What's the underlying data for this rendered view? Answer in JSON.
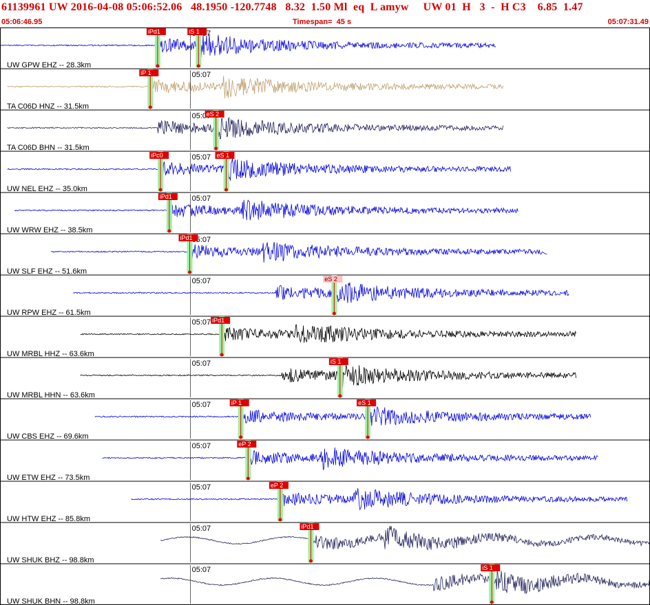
{
  "header": {
    "title": "61139961 UW 2016-04-08 05:06:52.06   48.1950 -120.7748   8.32  1.50 Ml  eq  L amyw     UW 01  H   3  -  H C3    6.85  1.47",
    "start_time": "05:06:46.95",
    "timespan": "Timespan=  45 s",
    "end_time": "05:07:31.49"
  },
  "colors": {
    "blue": "#0000e0",
    "tan": "#c0a070",
    "navy": "#20205a",
    "black": "#000000",
    "pick_red": "#e00000",
    "pick_pink": "#ffc0c0",
    "pick_window_green": "#a0f0a0"
  },
  "chart_data": {
    "type": "seismogram",
    "x_unit": "seconds after 05:06:46.95",
    "xlim": [
      0,
      44.54
    ],
    "minute_marker_label": "05:07",
    "minute_marker_t": 13.05,
    "traces": [
      {
        "label": "UW GPW EHZ -- 28.3km",
        "color": "blue",
        "start": 0.0,
        "end": 34.0,
        "picks": [
          {
            "label": "iPd1",
            "t": 10.8,
            "style": "red"
          },
          {
            "label": "iS 1",
            "t": 13.6,
            "style": "red"
          }
        ]
      },
      {
        "label": "TA C06D HNZ -- 31.5km",
        "color": "tan",
        "start": 0.5,
        "end": 34.5,
        "picks": [
          {
            "label": "iP 1",
            "t": 10.3,
            "style": "red"
          }
        ]
      },
      {
        "label": "TA C06D BHN -- 31.5km",
        "color": "navy",
        "start": 0.5,
        "end": 34.5,
        "picks": [
          {
            "label": "eS 2",
            "t": 14.8,
            "style": "red"
          }
        ]
      },
      {
        "label": "UW NEL EHZ -- 35.0km",
        "color": "blue",
        "start": 0.5,
        "end": 35.0,
        "picks": [
          {
            "label": "iPc0",
            "t": 11.0,
            "style": "red"
          },
          {
            "label": "eS 1",
            "t": 15.5,
            "style": "red"
          }
        ]
      },
      {
        "label": "UW WRW EHZ -- 38.5km",
        "color": "blue",
        "start": 1.0,
        "end": 35.5,
        "picks": [
          {
            "label": "iPd1",
            "t": 11.6,
            "style": "red"
          }
        ]
      },
      {
        "label": "UW SLF EHZ -- 51.6km",
        "color": "blue",
        "start": 3.5,
        "end": 37.5,
        "picks": [
          {
            "label": "iPd1",
            "t": 13.0,
            "style": "red"
          }
        ]
      },
      {
        "label": "UW RPW EHZ -- 61.5km",
        "color": "blue",
        "start": 5.0,
        "end": 39.0,
        "picks": [
          {
            "label": "eS 2",
            "t": 22.9,
            "style": "pink"
          }
        ]
      },
      {
        "label": "UW MRBL HHZ -- 63.6km",
        "color": "black",
        "start": 5.5,
        "end": 39.5,
        "picks": [
          {
            "label": "iPd1",
            "t": 15.2,
            "style": "red"
          }
        ]
      },
      {
        "label": "UW MRBL HHN -- 63.6km",
        "color": "black",
        "start": 5.5,
        "end": 39.5,
        "picks": [
          {
            "label": "iS 1",
            "t": 23.3,
            "style": "red"
          }
        ]
      },
      {
        "label": "UW CBS EHZ -- 69.6km",
        "color": "blue",
        "start": 6.5,
        "end": 40.5,
        "picks": [
          {
            "label": "iP 1",
            "t": 16.5,
            "style": "red"
          },
          {
            "label": "eS 1",
            "t": 25.2,
            "style": "red"
          }
        ]
      },
      {
        "label": "UW ETW EHZ -- 73.5km",
        "color": "blue",
        "start": 7.0,
        "end": 41.0,
        "picks": [
          {
            "label": "eP 2",
            "t": 17.0,
            "style": "red"
          }
        ]
      },
      {
        "label": "UW HTW EHZ -- 85.8km",
        "color": "blue",
        "start": 9.0,
        "end": 43.0,
        "picks": [
          {
            "label": "eP 2",
            "t": 19.2,
            "style": "red"
          }
        ]
      },
      {
        "label": "UW SHUK BHZ -- 98.8km",
        "color": "navy",
        "start": 11.0,
        "end": 44.54,
        "picks": [
          {
            "label": "iPd1",
            "t": 21.3,
            "style": "red"
          }
        ]
      },
      {
        "label": "UW SHUK BHN -- 98.8km",
        "color": "navy",
        "start": 11.0,
        "end": 44.54,
        "picks": [
          {
            "label": "iS 1",
            "t": 33.7,
            "style": "red"
          }
        ]
      }
    ]
  }
}
